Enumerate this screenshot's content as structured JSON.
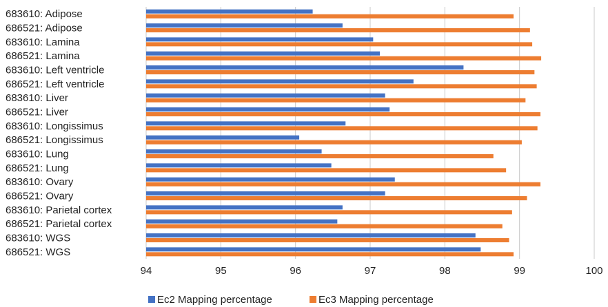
{
  "chart_data": {
    "type": "bar",
    "orientation": "horizontal",
    "categories": [
      "683610: Adipose",
      "686521: Adipose",
      "683610: Lamina",
      "686521: Lamina",
      "683610: Left ventricle",
      "686521: Left ventricle",
      "683610: Liver",
      "686521: Liver",
      "683610: Longissimus",
      "686521: Longissimus",
      "683610: Lung",
      "686521: Lung",
      "683610: Ovary",
      "686521: Ovary",
      "683610: Parietal cortex",
      "686521: Parietal cortex",
      "683610: WGS",
      "686521: WGS"
    ],
    "series": [
      {
        "name": "Ec2 Mapping percentage",
        "color": "#4472C4",
        "values": [
          96.23,
          96.63,
          97.04,
          97.13,
          98.25,
          97.58,
          97.2,
          97.26,
          96.67,
          96.05,
          96.35,
          96.48,
          97.33,
          97.2,
          96.63,
          96.56,
          98.41,
          98.48
        ]
      },
      {
        "name": "Ec3 Mapping percentage",
        "color": "#ED7D31",
        "values": [
          98.92,
          99.14,
          99.17,
          99.29,
          99.2,
          99.23,
          99.08,
          99.28,
          99.24,
          99.03,
          98.65,
          98.82,
          99.28,
          99.1,
          98.9,
          98.77,
          98.86,
          98.92
        ]
      }
    ],
    "xlim": [
      94,
      100
    ],
    "xticks": [
      "94",
      "95",
      "96",
      "97",
      "98",
      "99",
      "100"
    ],
    "grid": true,
    "legend_position": "bottom"
  }
}
